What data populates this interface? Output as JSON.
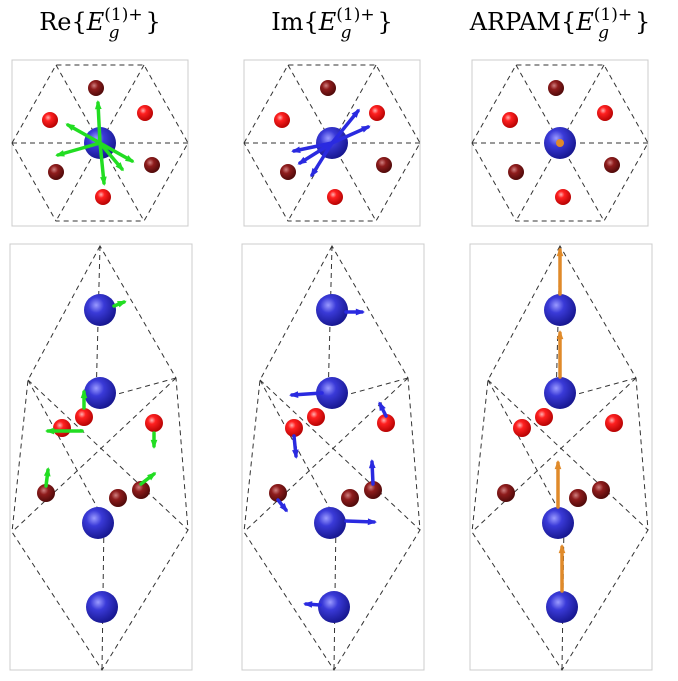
{
  "panels": [
    {
      "title": {
        "head": "Re{",
        "symbol": "E",
        "subscript": "g",
        "superscript": "(1)+",
        "tail": "}"
      }
    },
    {
      "title": {
        "head": "Im{",
        "symbol": "E",
        "subscript": "g",
        "superscript": "(1)+",
        "tail": "}"
      }
    },
    {
      "title": {
        "head": "ARPAM{",
        "symbol": "E",
        "subscript": "g",
        "superscript": "(1)+",
        "tail": "}"
      }
    }
  ]
}
